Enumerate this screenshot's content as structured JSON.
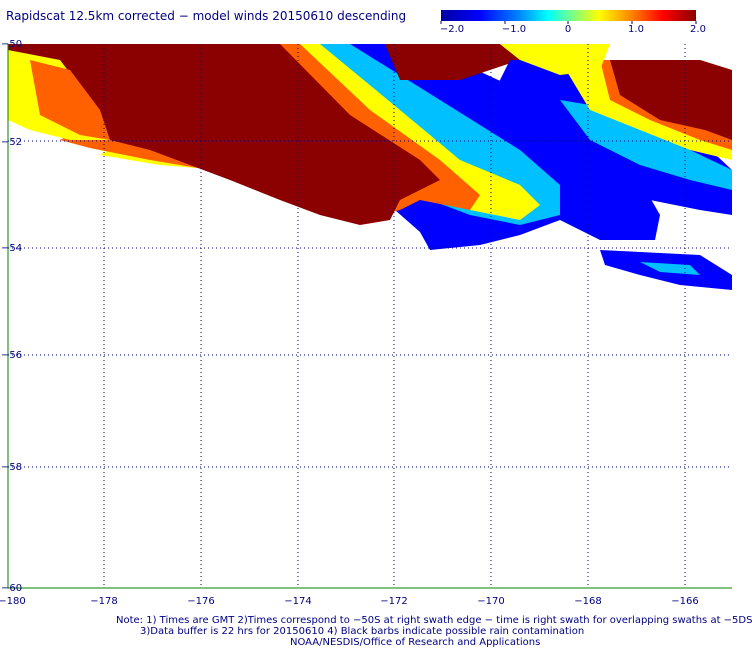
{
  "title": "Rapidscat 12.5km corrected − model winds 20150610 descending",
  "colorbar": {
    "labels": [
      "−2.0",
      "−1.0",
      "0",
      "1.0",
      "2.0"
    ],
    "stops": [
      "#0000a0",
      "#0000ff",
      "#0080ff",
      "#00ffff",
      "#80ff80",
      "#ffff00",
      "#ff8000",
      "#ff0000",
      "#8b0000"
    ]
  },
  "map": {
    "lon_range": [
      -180,
      -165
    ],
    "lat_range": [
      -50,
      -60
    ],
    "lon_ticks": [
      "−180",
      "−178",
      "−176",
      "−174",
      "−172",
      "−170",
      "−168",
      "−166"
    ],
    "lat_ticks": [
      "−50",
      "−52",
      "−54",
      "−56",
      "−58",
      "−60"
    ],
    "grid": true
  },
  "footer": {
    "line1": "Note: 1) Times are GMT 2)Times correspond to −50S at right swath edge − time is right swath for overlapping swaths at −5DS",
    "line2": "3)Data buffer is 22 hrs for 20150610 4) Black barbs indicate possible rain contamination",
    "line3": "NOAA/NESDIS/Office of Research and Applications"
  }
}
